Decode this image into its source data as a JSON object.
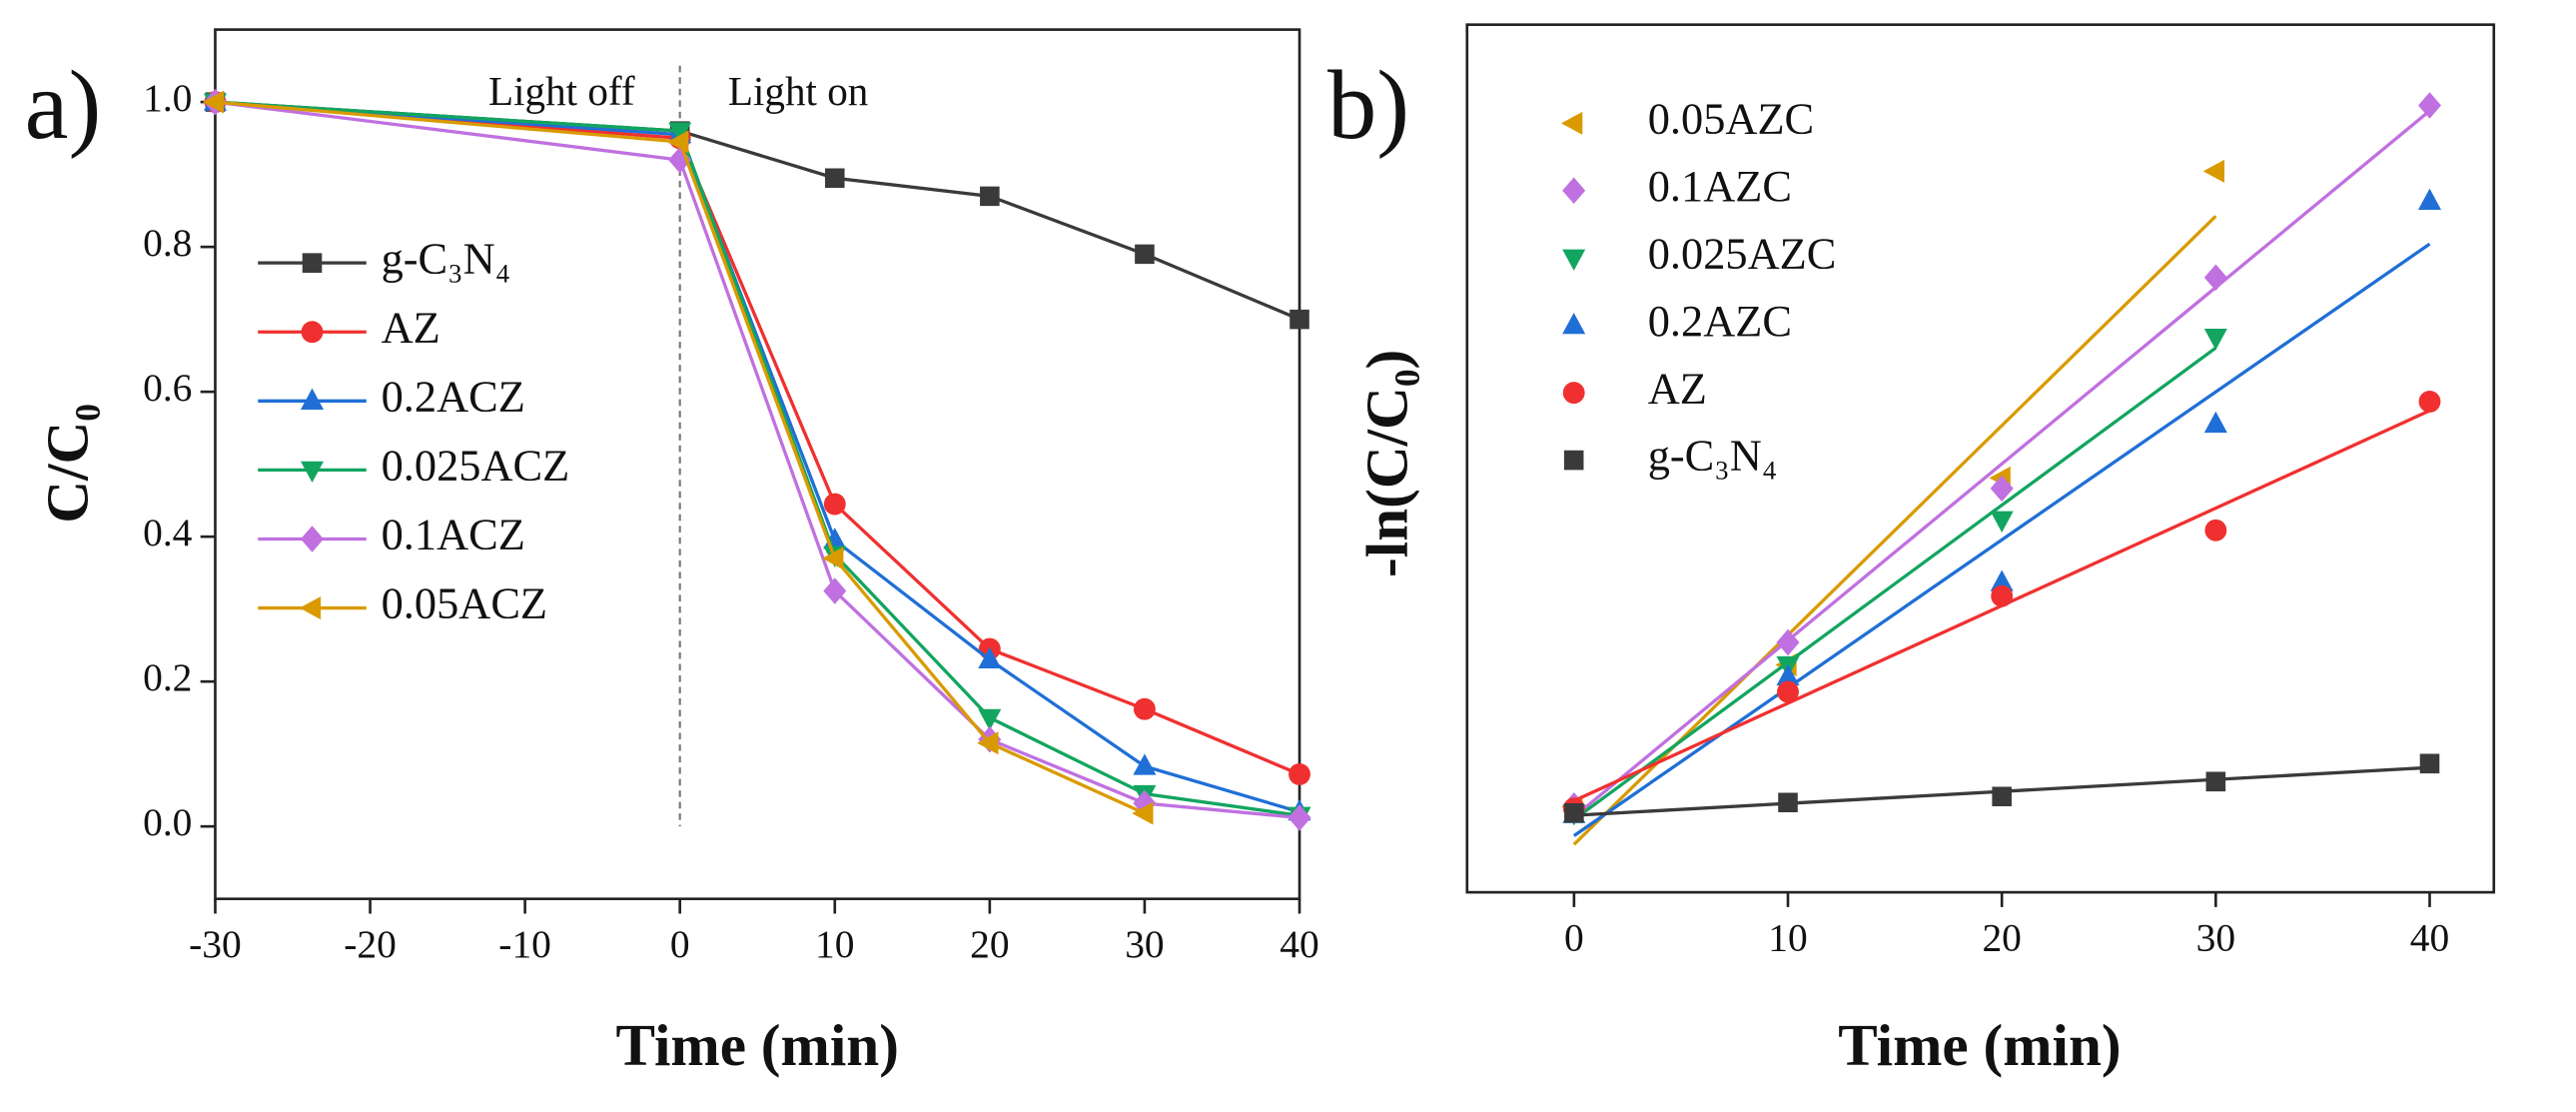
{
  "chart_data": [
    {
      "type": "line",
      "panel": "a)",
      "xlabel": "Time (min)",
      "ylabel": "C/C₀",
      "annotations": [
        "Light off",
        "Light on"
      ],
      "xlim": [
        -30,
        40
      ],
      "xticks": [
        -30,
        -20,
        -10,
        0,
        10,
        20,
        30,
        40
      ],
      "ylim": [
        -0.1,
        1.1
      ],
      "yticks": [
        {
          "value": 0,
          "label": "0.0"
        },
        0.2,
        0.4,
        0.6,
        0.8,
        {
          "value": 1,
          "label": "1.0"
        }
      ],
      "series": [
        {
          "name": "g-C₃N₄",
          "color": "#3a3a3a",
          "marker": "square",
          "x": [
            -30,
            0,
            10,
            20,
            30,
            40
          ],
          "values": [
            1.0,
            0.96,
            0.895,
            0.87,
            0.79,
            0.7
          ]
        },
        {
          "name": "AZ",
          "color": "#f03030",
          "marker": "circle",
          "x": [
            -30,
            0,
            10,
            20,
            30,
            40
          ],
          "values": [
            1.0,
            0.95,
            0.445,
            0.245,
            0.162,
            0.072
          ]
        },
        {
          "name": "0.2ACZ",
          "color": "#1f6fd6",
          "marker": "triangle-up",
          "x": [
            -30,
            0,
            10,
            20,
            30,
            40
          ],
          "values": [
            1.0,
            0.955,
            0.395,
            0.23,
            0.083,
            0.02
          ]
        },
        {
          "name": "0.025ACZ",
          "color": "#12a560",
          "marker": "triangle-down",
          "x": [
            -30,
            0,
            10,
            20,
            30,
            40
          ],
          "values": [
            1.0,
            0.96,
            0.375,
            0.15,
            0.045,
            0.015
          ]
        },
        {
          "name": "0.1ACZ",
          "color": "#c070e0",
          "marker": "diamond",
          "x": [
            -30,
            0,
            10,
            20,
            30,
            40
          ],
          "values": [
            1.0,
            0.92,
            0.325,
            0.12,
            0.032,
            0.012
          ]
        },
        {
          "name": "0.05ACZ",
          "color": "#d99a00",
          "marker": "triangle-left",
          "x": [
            -30,
            0,
            10,
            20,
            30
          ],
          "values": [
            1.0,
            0.945,
            0.37,
            0.115,
            0.018
          ]
        }
      ]
    },
    {
      "type": "scatter",
      "panel": "b)",
      "xlabel": "Time (min)",
      "ylabel": "-ln(C/C₀)",
      "fit": true,
      "xlim": [
        -5,
        43
      ],
      "xticks": [
        0,
        10,
        20,
        30,
        40
      ],
      "ylim": [
        -0.5,
        5.3
      ],
      "series": [
        {
          "name": "0.05AZC",
          "color": "#d99a00",
          "marker": "triangle-left",
          "x": [
            0,
            10,
            20,
            30
          ],
          "values": [
            0.07,
            1.02,
            2.27,
            4.32
          ]
        },
        {
          "name": "0.1AZC",
          "color": "#c070e0",
          "marker": "diamond",
          "x": [
            0,
            10,
            20,
            30,
            40
          ],
          "values": [
            0.08,
            1.17,
            2.2,
            3.61,
            4.76
          ]
        },
        {
          "name": "0.025AZC",
          "color": "#12a560",
          "marker": "triangle-down",
          "x": [
            0,
            10,
            20,
            30
          ],
          "values": [
            0.03,
            1.02,
            1.99,
            3.21
          ]
        },
        {
          "name": "0.2AZC",
          "color": "#1f6fd6",
          "marker": "triangle-up",
          "x": [
            0,
            10,
            20,
            30,
            40
          ],
          "values": [
            0.02,
            0.94,
            1.57,
            2.63,
            4.12
          ]
        },
        {
          "name": "AZ",
          "color": "#f03030",
          "marker": "circle",
          "x": [
            0,
            10,
            20,
            30,
            40
          ],
          "values": [
            0.06,
            0.84,
            1.48,
            1.92,
            2.78
          ]
        },
        {
          "name": "g-C₃N₄",
          "color": "#3a3a3a",
          "marker": "square",
          "x": [
            0,
            10,
            20,
            30,
            40
          ],
          "values": [
            0.03,
            0.1,
            0.14,
            0.24,
            0.36
          ]
        }
      ]
    }
  ]
}
